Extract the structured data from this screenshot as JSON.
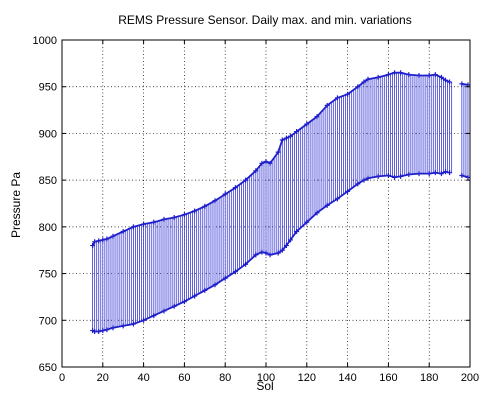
{
  "chart_data": {
    "type": "line",
    "title": "REMS Pressure Sensor. Daily max. and min. variations",
    "xlabel": "Sol",
    "ylabel": "Pressure Pa",
    "xlim": [
      0,
      200
    ],
    "ylim": [
      650,
      1000
    ],
    "xticks": [
      0,
      20,
      40,
      60,
      80,
      100,
      120,
      140,
      160,
      180,
      200
    ],
    "yticks": [
      650,
      700,
      750,
      800,
      850,
      900,
      950,
      1000
    ],
    "grid": true,
    "legend": "none",
    "colors": {
      "series": "#1f1fcc",
      "bars": "#3a3ad8",
      "grid": "#000000",
      "background": "#ffffff"
    },
    "series": [
      {
        "name": "",
        "role": "max",
        "points": [
          [
            15,
            780
          ],
          [
            16,
            784
          ],
          [
            18,
            785
          ],
          [
            20,
            786
          ],
          [
            22,
            787
          ],
          [
            25,
            790
          ],
          [
            30,
            795
          ],
          [
            35,
            800
          ],
          [
            40,
            803
          ],
          [
            45,
            805
          ],
          [
            50,
            808
          ],
          [
            55,
            810
          ],
          [
            60,
            813
          ],
          [
            65,
            817
          ],
          [
            70,
            822
          ],
          [
            75,
            828
          ],
          [
            80,
            835
          ],
          [
            85,
            842
          ],
          [
            90,
            850
          ],
          [
            95,
            860
          ],
          [
            98,
            868
          ],
          [
            100,
            870
          ],
          [
            102,
            868
          ],
          [
            106,
            880
          ],
          [
            108,
            893
          ],
          [
            110,
            895
          ],
          [
            112,
            897
          ],
          [
            115,
            902
          ],
          [
            120,
            910
          ],
          [
            125,
            918
          ],
          [
            130,
            930
          ],
          [
            135,
            938
          ],
          [
            140,
            942
          ],
          [
            145,
            950
          ],
          [
            148,
            955
          ],
          [
            150,
            958
          ],
          [
            155,
            960
          ],
          [
            160,
            963
          ],
          [
            163,
            965
          ],
          [
            166,
            965
          ],
          [
            170,
            963
          ],
          [
            175,
            962
          ],
          [
            180,
            962
          ],
          [
            183,
            963
          ],
          [
            186,
            960
          ],
          [
            188,
            957
          ],
          [
            190,
            955
          ],
          [
            196,
            953
          ],
          [
            199,
            952
          ]
        ]
      },
      {
        "name": "",
        "role": "min",
        "points": [
          [
            15,
            689
          ],
          [
            16,
            688
          ],
          [
            18,
            688
          ],
          [
            20,
            689
          ],
          [
            22,
            690
          ],
          [
            25,
            692
          ],
          [
            30,
            694
          ],
          [
            35,
            696
          ],
          [
            40,
            700
          ],
          [
            45,
            705
          ],
          [
            50,
            710
          ],
          [
            55,
            715
          ],
          [
            60,
            720
          ],
          [
            65,
            726
          ],
          [
            70,
            732
          ],
          [
            75,
            738
          ],
          [
            80,
            745
          ],
          [
            85,
            752
          ],
          [
            90,
            760
          ],
          [
            95,
            770
          ],
          [
            98,
            773
          ],
          [
            100,
            772
          ],
          [
            102,
            770
          ],
          [
            106,
            772
          ],
          [
            108,
            775
          ],
          [
            110,
            780
          ],
          [
            112,
            786
          ],
          [
            115,
            795
          ],
          [
            120,
            805
          ],
          [
            125,
            815
          ],
          [
            130,
            823
          ],
          [
            135,
            830
          ],
          [
            140,
            838
          ],
          [
            145,
            846
          ],
          [
            148,
            850
          ],
          [
            150,
            852
          ],
          [
            155,
            854
          ],
          [
            160,
            855
          ],
          [
            163,
            853
          ],
          [
            166,
            854
          ],
          [
            170,
            856
          ],
          [
            175,
            857
          ],
          [
            180,
            857
          ],
          [
            183,
            858
          ],
          [
            186,
            857
          ],
          [
            188,
            859
          ],
          [
            190,
            858
          ],
          [
            196,
            855
          ],
          [
            199,
            853
          ]
        ]
      }
    ]
  }
}
